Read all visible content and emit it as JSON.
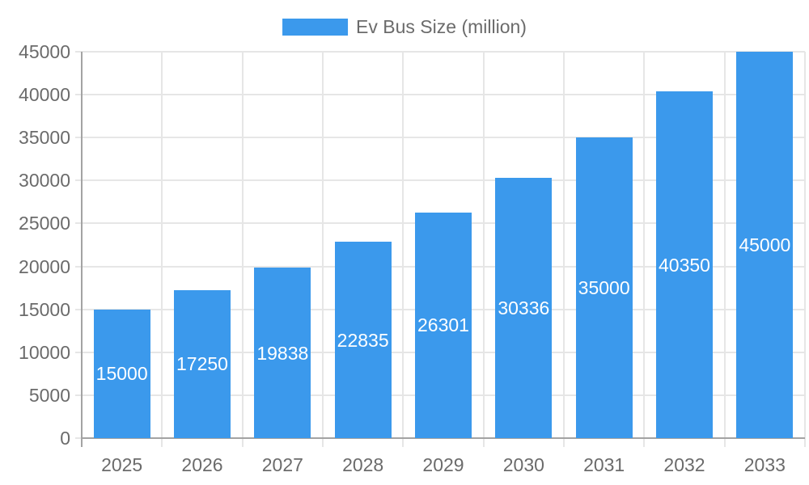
{
  "legend": {
    "label": "Ev Bus Size (million)"
  },
  "chart_data": {
    "type": "bar",
    "title": "",
    "categories": [
      "2025",
      "2026",
      "2027",
      "2028",
      "2029",
      "2030",
      "2031",
      "2032",
      "2033"
    ],
    "series": [
      {
        "name": "Ev Bus Size (million)",
        "values": [
          15000,
          17250,
          19838,
          22835,
          26301,
          30336,
          35000,
          40350,
          45000
        ]
      }
    ],
    "bar_value_labels": [
      15000,
      17250,
      19838,
      22835,
      26301,
      30336,
      35000,
      40350,
      45000
    ],
    "xlabel": "",
    "ylabel": "",
    "ylim": [
      0,
      45000
    ],
    "yticks": [
      0,
      5000,
      10000,
      15000,
      20000,
      25000,
      30000,
      35000,
      40000,
      45000
    ],
    "grid": true,
    "legend_position": "top",
    "colors": {
      "bar": "#3b99ec",
      "grid": "#e6e6e6",
      "axis": "#a3a3a3",
      "tick_text": "#6b6b6b",
      "value_label": "#ffffff"
    }
  }
}
